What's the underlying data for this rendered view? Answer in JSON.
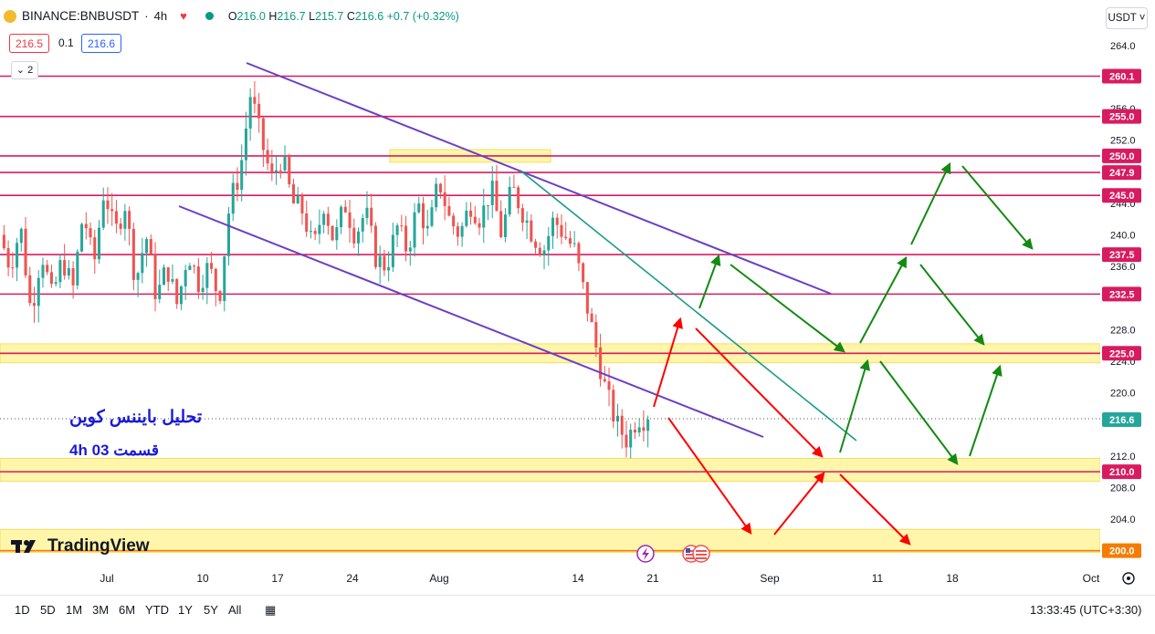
{
  "header": {
    "symbol": "BINANCE:BNBUSDT",
    "sep": "·",
    "interval": "4h",
    "open_label": "O",
    "open": "216.0",
    "high_label": "H",
    "high": "216.7",
    "low_label": "L",
    "low": "215.7",
    "close_label": "C",
    "close": "216.6",
    "change": "+0.7 (+0.32%)",
    "sell_price": "216.5",
    "spread": "0.1",
    "buy_price": "216.6",
    "layers_count": "2"
  },
  "currency_button": "USDT",
  "annotations": {
    "fa_title": "تحلیل بایننس کوین",
    "fa_episode": "4h    قسمت 03"
  },
  "branding": {
    "logo_text": "TradingView"
  },
  "bottom_bar": {
    "timeframes": [
      "1D",
      "5D",
      "1M",
      "3M",
      "6M",
      "YTD",
      "1Y",
      "5Y",
      "All"
    ],
    "clock": "13:33:45 (UTC+3:30)"
  },
  "colors": {
    "up": "#26a69a",
    "down": "#ef5350",
    "level": "#d81b60",
    "zone": "#fff59d",
    "channel": "#6a3fc8",
    "trend": "#1a9a8a",
    "arrow_red": "#ff0000",
    "arrow_green": "#138a13",
    "last_price_bg": "#26a69a",
    "label_bg": "#d81b60",
    "fa_text": "#1a1ad6"
  },
  "chart_data": {
    "type": "candlestick",
    "title": "",
    "xlabel": "",
    "ylabel": "",
    "x_ticks": [
      "Jul",
      "10",
      "17",
      "24",
      "Aug",
      "14",
      "21",
      "Sep",
      "11",
      "18",
      "Oct"
    ],
    "y_ticks": [
      "264.0",
      "256.0",
      "252.0",
      "248.0",
      "244.0",
      "240.0",
      "236.0",
      "228.0",
      "224.0",
      "220.0",
      "212.0",
      "208.0",
      "204.0"
    ],
    "ylim": [
      198,
      265
    ],
    "last_price": 216.6,
    "horizontal_levels": [
      {
        "value": 260.1,
        "label": "260.1"
      },
      {
        "value": 255.0,
        "label": "255.0"
      },
      {
        "value": 250.0,
        "label": "250.0"
      },
      {
        "value": 247.9,
        "label": "247.9"
      },
      {
        "value": 245.0,
        "label": "245.0"
      },
      {
        "value": 237.5,
        "label": "237.5"
      },
      {
        "value": 232.5,
        "label": "232.5"
      },
      {
        "value": 225.0,
        "label": "225.0"
      },
      {
        "value": 210.0,
        "label": "210.0"
      },
      {
        "value": 200.0,
        "label": "200.0"
      }
    ],
    "zones": [
      {
        "from": 223.8,
        "to": 226.2
      },
      {
        "from": 208.8,
        "to": 211.7
      },
      {
        "from": 199.8,
        "to": 202.7
      },
      {
        "from": 249.2,
        "to": 250.8
      }
    ],
    "price_path": [
      240,
      236,
      241,
      230,
      238,
      232,
      237,
      233,
      243,
      236,
      246,
      240,
      244,
      234,
      240,
      232,
      236,
      231,
      238,
      234,
      236,
      232,
      244,
      248,
      258,
      252,
      247,
      250,
      244,
      243,
      238,
      244,
      239,
      244,
      240,
      243,
      237,
      236,
      241,
      238,
      244,
      240,
      247,
      242,
      240,
      244,
      242,
      246,
      240,
      246,
      243,
      240,
      238,
      242,
      240,
      238,
      232,
      226,
      220,
      216,
      214,
      217,
      216.6
    ]
  }
}
